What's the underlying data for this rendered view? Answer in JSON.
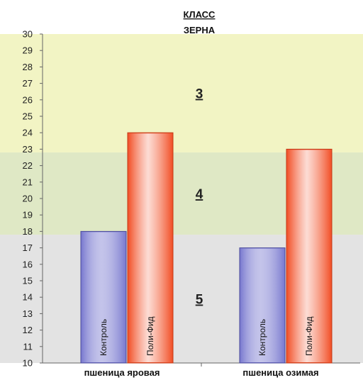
{
  "chart_data": {
    "type": "bar",
    "title_line1": "КЛАСС",
    "title_line2": "ЗЕРНА",
    "xlabel": "",
    "ylabel": "",
    "ylim": [
      10,
      30
    ],
    "yticks": [
      10,
      11,
      12,
      13,
      14,
      15,
      16,
      17,
      18,
      19,
      20,
      21,
      22,
      23,
      24,
      25,
      26,
      27,
      28,
      29,
      30
    ],
    "categories": [
      "пшеница яровая",
      "пшеница озимая"
    ],
    "series": [
      {
        "name": "Контроль",
        "values": [
          18,
          17
        ],
        "color": "#7b7bd0"
      },
      {
        "name": "Поли-Фид",
        "values": [
          24,
          23
        ],
        "color": "#f2522a"
      }
    ],
    "zones": [
      {
        "label": "5",
        "from": 10,
        "to": 17.8,
        "color": "#e3e3e3"
      },
      {
        "label": "4",
        "from": 17.8,
        "to": 22.8,
        "color": "#dfe8c5"
      },
      {
        "label": "3",
        "from": 22.8,
        "to": 30,
        "color": "#f2f4c4"
      }
    ],
    "grid": false,
    "legend": "none"
  }
}
